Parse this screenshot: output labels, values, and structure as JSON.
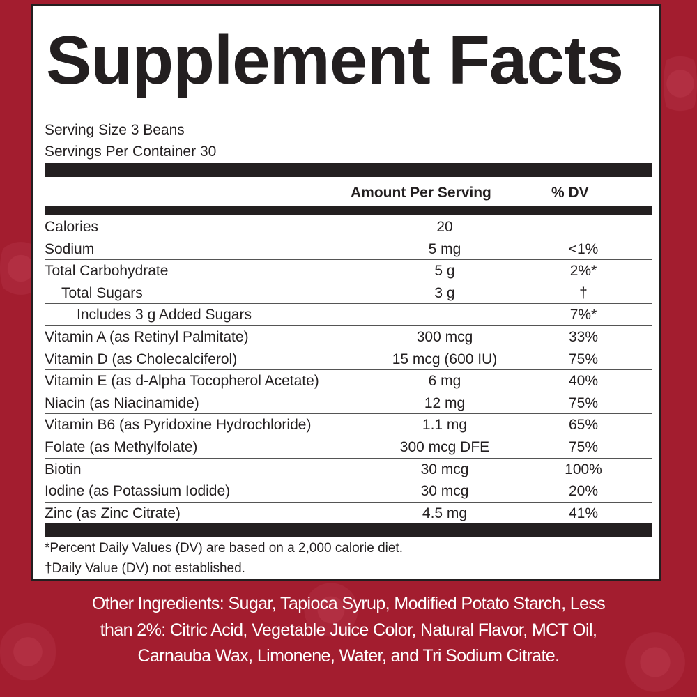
{
  "title": "Supplement Facts",
  "serving_size": "Serving Size 3 Beans",
  "servings_per_container": "Servings Per Container 30",
  "headers": {
    "amount": "Amount Per Serving",
    "dv": "% DV"
  },
  "rows": [
    {
      "name": "Calories",
      "amount": "20",
      "dv": ""
    },
    {
      "name": "Sodium",
      "amount": "5 mg",
      "dv": "<1%"
    },
    {
      "name": "Total Carbohydrate",
      "amount": "5 g",
      "dv": "2%*"
    },
    {
      "name": "Total Sugars",
      "amount": "3 g",
      "dv": "†"
    },
    {
      "name": "Includes 3 g Added Sugars",
      "amount": "",
      "dv": "7%*"
    },
    {
      "name": "Vitamin A (as Retinyl Palmitate)",
      "amount": "300 mcg",
      "dv": "33%"
    },
    {
      "name": "Vitamin D (as Cholecalciferol)",
      "amount": "15 mcg (600 IU)",
      "dv": "75%"
    },
    {
      "name": "Vitamin E (as d-Alpha Tocopherol Acetate)",
      "amount": "6 mg",
      "dv": "40%"
    },
    {
      "name": "Niacin (as Niacinamide)",
      "amount": "12 mg",
      "dv": "75%"
    },
    {
      "name": "Vitamin B6 (as Pyridoxine Hydrochloride)",
      "amount": "1.1 mg",
      "dv": "65%"
    },
    {
      "name": "Folate (as Methylfolate)",
      "amount": "300 mcg DFE",
      "dv": "75%"
    },
    {
      "name": "Biotin",
      "amount": "30 mcg",
      "dv": "100%"
    },
    {
      "name": "Iodine (as Potassium Iodide)",
      "amount": "30 mcg",
      "dv": "20%"
    },
    {
      "name": "Zinc (as Zinc Citrate)",
      "amount": "4.5 mg",
      "dv": "41%"
    }
  ],
  "footnotes": [
    "*Percent Daily Values (DV) are based on a 2,000 calorie diet.",
    "†Daily Value (DV) not established."
  ],
  "other_ingredients": [
    "Other Ingredients: Sugar, Tapioca Syrup, Modified Potato Starch, Less",
    "than 2%: Citric Acid, Vegetable Juice Color, Natural Flavor, MCT Oil,",
    "Carnauba Wax, Limonene, Water, and Tri Sodium Citrate."
  ],
  "colors": {
    "background": "#a31d2f",
    "panel": "#ffffff",
    "text": "#231f20"
  }
}
